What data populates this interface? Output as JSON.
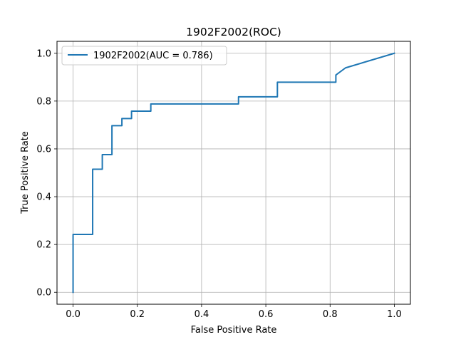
{
  "chart_data": {
    "type": "line",
    "title": "1902F2002(ROC)",
    "xlabel": "False Positive Rate",
    "ylabel": "True Positive Rate",
    "xlim": [
      -0.05,
      1.05
    ],
    "ylim": [
      -0.05,
      1.05
    ],
    "x_ticks": [
      0.0,
      0.2,
      0.4,
      0.6,
      0.8,
      1.0
    ],
    "x_tick_labels": [
      "0.0",
      "0.2",
      "0.4",
      "0.6",
      "0.8",
      "1.0"
    ],
    "y_ticks": [
      0.0,
      0.2,
      0.4,
      0.6,
      0.8,
      1.0
    ],
    "y_tick_labels": [
      "0.0",
      "0.2",
      "0.4",
      "0.6",
      "0.8",
      "1.0"
    ],
    "grid": true,
    "legend_position": "upper-left",
    "series": [
      {
        "name": "1902F2002(AUC = 0.786)",
        "color": "#1f77b4",
        "x": [
          0.0,
          0.0,
          0.0,
          0.061,
          0.061,
          0.091,
          0.091,
          0.121,
          0.121,
          0.152,
          0.152,
          0.182,
          0.182,
          0.242,
          0.242,
          0.515,
          0.515,
          0.636,
          0.636,
          0.818,
          0.818,
          0.848,
          1.0
        ],
        "y": [
          0.0,
          0.0,
          0.242,
          0.242,
          0.515,
          0.515,
          0.576,
          0.576,
          0.697,
          0.697,
          0.727,
          0.727,
          0.758,
          0.758,
          0.788,
          0.788,
          0.818,
          0.818,
          0.879,
          0.879,
          0.909,
          0.939,
          1.0
        ]
      }
    ]
  }
}
